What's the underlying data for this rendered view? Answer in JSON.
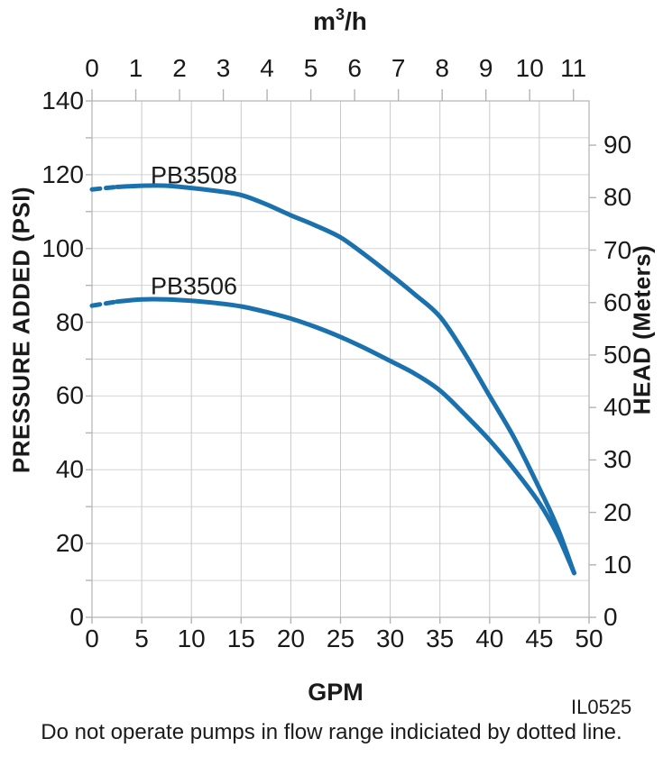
{
  "figure": {
    "top_axis_title": {
      "base": "m",
      "sup": "3",
      "rest": "/h"
    },
    "left_axis_title": "PRESSURE ADDED (PSI)",
    "right_axis_title": "HEAD (Meters)",
    "bottom_axis_title": "GPM",
    "figure_id": "IL0525",
    "caption": "Do not operate pumps in flow range indiciated by dotted line."
  },
  "chart_data": {
    "type": "line",
    "line_color": "#1a71ad",
    "grid": true,
    "x_bottom_axis": {
      "label": "GPM",
      "min": 0,
      "max": 50,
      "tick_step": 5,
      "ticks": [
        0,
        5,
        10,
        15,
        20,
        25,
        30,
        35,
        40,
        45,
        50
      ]
    },
    "x_top_axis": {
      "label": "m³/h",
      "min": 0,
      "max": 11,
      "ticks": [
        0,
        1,
        2,
        3,
        4,
        5,
        6,
        7,
        8,
        9,
        10,
        11
      ],
      "gpm_per_unit": 4.403
    },
    "y_left_axis": {
      "label": "PRESSURE ADDED (PSI)",
      "min": 0,
      "max": 140,
      "grid_step": 10,
      "tick_labels": [
        0,
        20,
        40,
        60,
        80,
        100,
        120,
        140
      ]
    },
    "y_right_axis": {
      "label": "HEAD (Meters)",
      "ticks": [
        0,
        10,
        20,
        30,
        40,
        50,
        60,
        70,
        80,
        90
      ],
      "psi_per_meter": 1.4223
    },
    "series": [
      {
        "name": "PB3508",
        "dotted_range_gpm": [
          0,
          2.5
        ],
        "points_gpm_psi": [
          [
            0,
            116
          ],
          [
            2.5,
            116.7
          ],
          [
            5,
            117
          ],
          [
            7.5,
            117
          ],
          [
            10,
            116.4
          ],
          [
            12.5,
            115.6
          ],
          [
            15,
            114.5
          ],
          [
            17.5,
            112
          ],
          [
            20,
            109
          ],
          [
            22.5,
            106.2
          ],
          [
            25,
            103
          ],
          [
            27.5,
            98.2
          ],
          [
            30,
            93
          ],
          [
            32.5,
            87.5
          ],
          [
            35,
            81.5
          ],
          [
            37.5,
            71.5
          ],
          [
            40,
            60
          ],
          [
            42.5,
            48.5
          ],
          [
            45,
            35
          ],
          [
            46.8,
            24.5
          ],
          [
            48.5,
            12
          ]
        ]
      },
      {
        "name": "PB3506",
        "dotted_range_gpm": [
          0,
          2.5
        ],
        "points_gpm_psi": [
          [
            0,
            84.5
          ],
          [
            2.5,
            85.6
          ],
          [
            5,
            86.2
          ],
          [
            7.5,
            86.2
          ],
          [
            10,
            85.8
          ],
          [
            12.5,
            85.2
          ],
          [
            15,
            84.3
          ],
          [
            17.5,
            82.8
          ],
          [
            20,
            81
          ],
          [
            22.5,
            78.7
          ],
          [
            25,
            76
          ],
          [
            27.5,
            72.9
          ],
          [
            30,
            69.5
          ],
          [
            32.5,
            66
          ],
          [
            35,
            61.5
          ],
          [
            37.5,
            55
          ],
          [
            40,
            48
          ],
          [
            42.5,
            40
          ],
          [
            45,
            31
          ],
          [
            46.8,
            22.5
          ],
          [
            48.5,
            12
          ]
        ]
      }
    ],
    "note": "Do not operate pumps in flow range indiciated by dotted line.",
    "figure_id": "IL0525"
  }
}
